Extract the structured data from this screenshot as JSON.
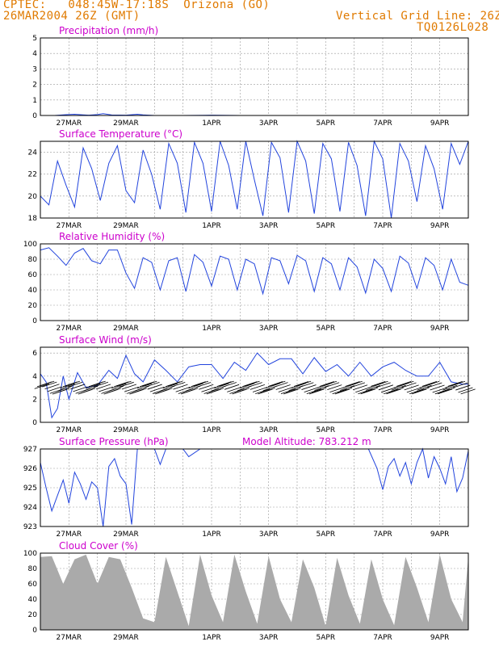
{
  "header": {
    "line1_left": "CPTEC:   048:45W-17:18S  Orizona (GO)",
    "line2_left": "26MAR2004 26Z (GMT)",
    "line1_right": "Vertical Grid Line: 26Z",
    "line2_right": "TQ0126L028"
  },
  "colors": {
    "header": "#e07a00",
    "title": "#cc00cc",
    "series": "#2244dd",
    "wind_barb": "#000000",
    "cloud": "#aaaaaa",
    "grid": "#999999"
  },
  "x_axis": {
    "labels": [
      "27MAR",
      "29MAR",
      "1APR",
      "3APR",
      "5APR",
      "7APR",
      "9APR"
    ],
    "day_range": [
      0,
      15
    ],
    "label_days": [
      1,
      3,
      6,
      8,
      10,
      12,
      14
    ]
  },
  "chart_data": [
    {
      "type": "line",
      "title": "Precipitation (mm/h)",
      "ylim": [
        0,
        5
      ],
      "yticks": [
        "0",
        "1",
        "2",
        "3",
        "4",
        "5"
      ],
      "x": [
        0,
        0.5,
        0.9,
        1.2,
        1.5,
        1.7,
        2.0,
        2.2,
        2.5,
        3.0,
        3.4,
        3.6,
        4.0,
        5.0,
        6.0,
        7.0,
        8.0,
        9.0,
        10.0,
        11.0,
        12.0,
        13.0,
        14.0,
        15.0
      ],
      "values": [
        0,
        0,
        0.05,
        0.08,
        0.04,
        0.02,
        0.06,
        0.12,
        0.03,
        0.02,
        0.08,
        0.04,
        0,
        0,
        0.02,
        0,
        0,
        0,
        0,
        0,
        0,
        0,
        0,
        0
      ]
    },
    {
      "type": "line",
      "title": "Surface Temperature (°C)",
      "ylim": [
        18,
        25
      ],
      "yticks": [
        "18",
        "20",
        "22",
        "24"
      ],
      "diurnal": {
        "peak_hour_frac": 0.72,
        "amp_start": 2.5,
        "amp_end": 3.5,
        "mean_start": 21.5,
        "mean_end": 21.6
      },
      "x": [
        0,
        0.3,
        0.6,
        0.9,
        1.2,
        1.5,
        1.8,
        2.1,
        2.4,
        2.7,
        3.0,
        3.3,
        3.6,
        3.9,
        4.2,
        4.5,
        4.8,
        5.1,
        5.4,
        5.7,
        6.0,
        6.3,
        6.6,
        6.9,
        7.2,
        7.5,
        7.8,
        8.1,
        8.4,
        8.7,
        9.0,
        9.3,
        9.6,
        9.9,
        10.2,
        10.5,
        10.8,
        11.1,
        11.4,
        11.7,
        12.0,
        12.3,
        12.6,
        12.9,
        13.2,
        13.5,
        13.8,
        14.1,
        14.4,
        14.7,
        15.0
      ],
      "values": [
        20.0,
        19.2,
        23.2,
        21.0,
        19.0,
        24.4,
        22.5,
        19.6,
        23.0,
        24.6,
        20.5,
        19.4,
        24.2,
        22.0,
        18.8,
        24.8,
        23.0,
        18.5,
        24.9,
        23.0,
        18.6,
        25.0,
        22.8,
        18.8,
        25.0,
        21.5,
        18.2,
        24.9,
        23.5,
        18.5,
        25.0,
        23.2,
        18.4,
        24.8,
        23.4,
        18.6,
        24.9,
        22.8,
        18.2,
        25.0,
        23.4,
        18.0,
        24.8,
        23.2,
        19.5,
        24.6,
        22.5,
        18.8,
        24.8,
        22.9,
        25.0
      ]
    },
    {
      "type": "line",
      "title": "Relative Humidity (%)",
      "ylim": [
        0,
        100
      ],
      "yticks": [
        "0",
        "20",
        "40",
        "60",
        "80",
        "100"
      ],
      "x": [
        0,
        0.3,
        0.6,
        0.9,
        1.2,
        1.5,
        1.8,
        2.1,
        2.4,
        2.7,
        3.0,
        3.3,
        3.6,
        3.9,
        4.2,
        4.5,
        4.8,
        5.1,
        5.4,
        5.7,
        6.0,
        6.3,
        6.6,
        6.9,
        7.2,
        7.5,
        7.8,
        8.1,
        8.4,
        8.7,
        9.0,
        9.3,
        9.6,
        9.9,
        10.2,
        10.5,
        10.8,
        11.1,
        11.4,
        11.7,
        12.0,
        12.3,
        12.6,
        12.9,
        13.2,
        13.5,
        13.8,
        14.1,
        14.4,
        14.7,
        15.0
      ],
      "values": [
        92,
        95,
        84,
        72,
        88,
        94,
        78,
        74,
        92,
        92,
        62,
        42,
        82,
        76,
        40,
        78,
        82,
        38,
        86,
        76,
        45,
        84,
        80,
        40,
        80,
        74,
        35,
        82,
        78,
        48,
        85,
        78,
        38,
        82,
        74,
        40,
        82,
        70,
        36,
        80,
        68,
        38,
        84,
        75,
        42,
        82,
        72,
        40,
        80,
        50,
        46
      ]
    },
    {
      "type": "line",
      "title": "Surface Wind (m/s)",
      "ylim": [
        0,
        6.5
      ],
      "yticks": [
        "0",
        "2",
        "4",
        "6"
      ],
      "x": [
        0,
        0.2,
        0.4,
        0.6,
        0.8,
        1.0,
        1.3,
        1.6,
        2.0,
        2.4,
        2.7,
        3.0,
        3.3,
        3.6,
        4.0,
        4.4,
        4.8,
        5.2,
        5.6,
        6.0,
        6.4,
        6.8,
        7.2,
        7.6,
        8.0,
        8.4,
        8.8,
        9.2,
        9.6,
        10.0,
        10.4,
        10.8,
        11.2,
        11.6,
        12.0,
        12.4,
        12.8,
        13.2,
        13.6,
        14.0,
        14.4,
        14.8,
        15.0
      ],
      "values": [
        4.2,
        3.5,
        0.4,
        1.2,
        4.0,
        2.0,
        4.3,
        3.0,
        3.2,
        4.5,
        3.8,
        5.8,
        4.2,
        3.5,
        5.4,
        4.5,
        3.5,
        4.8,
        5.0,
        5.0,
        3.8,
        5.2,
        4.5,
        6.0,
        5.0,
        5.5,
        5.5,
        4.2,
        5.6,
        4.4,
        5.0,
        4.0,
        5.2,
        4.0,
        4.8,
        5.2,
        4.5,
        4.0,
        4.0,
        5.2,
        3.5,
        3.3,
        3.3
      ],
      "barb_level": 3.0
    },
    {
      "type": "line",
      "title": "Surface Pressure (hPa)",
      "annotation": "Model Altitude: 783.212 m",
      "ylim": [
        923,
        927
      ],
      "yticks": [
        "923",
        "924",
        "925",
        "926",
        "927"
      ],
      "x": [
        0,
        0.2,
        0.4,
        0.6,
        0.8,
        1.0,
        1.2,
        1.4,
        1.6,
        1.8,
        2.0,
        2.2,
        2.4,
        2.6,
        2.8,
        3.0,
        3.2,
        3.4,
        3.6,
        3.8,
        4.0,
        4.2,
        4.4,
        4.6,
        4.8,
        5.0,
        5.2,
        5.6,
        6.0,
        7.0,
        8.0,
        9.0,
        10.0,
        11.0,
        11.5,
        11.8,
        12.0,
        12.2,
        12.4,
        12.6,
        12.8,
        13.0,
        13.2,
        13.4,
        13.6,
        13.8,
        14.0,
        14.2,
        14.4,
        14.6,
        14.8,
        15.0
      ],
      "values": [
        926.3,
        925.0,
        923.8,
        924.6,
        925.4,
        924.2,
        925.8,
        925.2,
        924.4,
        925.3,
        925.0,
        923.0,
        926.1,
        926.5,
        925.6,
        925.2,
        923.1,
        927.0,
        927.0,
        927.0,
        927.0,
        926.2,
        927.0,
        927.0,
        927.0,
        927.0,
        926.6,
        927.0,
        927.0,
        927.0,
        927.0,
        927.0,
        927.0,
        927.0,
        927.0,
        926.0,
        924.9,
        926.1,
        926.5,
        925.6,
        926.3,
        925.2,
        926.3,
        927.0,
        925.5,
        926.6,
        926.0,
        925.2,
        926.6,
        924.8,
        925.5,
        926.9
      ]
    },
    {
      "type": "area",
      "title": "Cloud Cover (%)",
      "ylim": [
        0,
        100
      ],
      "yticks": [
        "0",
        "20",
        "40",
        "60",
        "80",
        "100"
      ],
      "x": [
        0,
        0.4,
        0.8,
        1.2,
        1.6,
        2.0,
        2.4,
        2.8,
        3.2,
        3.6,
        4.0,
        4.4,
        4.8,
        5.2,
        5.6,
        6.0,
        6.4,
        6.8,
        7.2,
        7.6,
        8.0,
        8.4,
        8.8,
        9.2,
        9.6,
        10.0,
        10.4,
        10.8,
        11.2,
        11.6,
        12.0,
        12.4,
        12.8,
        13.2,
        13.6,
        14.0,
        14.4,
        14.8,
        15.0
      ],
      "values": [
        95,
        96,
        60,
        92,
        98,
        60,
        95,
        92,
        55,
        15,
        10,
        95,
        50,
        5,
        98,
        45,
        10,
        98,
        50,
        8,
        96,
        40,
        10,
        92,
        55,
        5,
        94,
        45,
        8,
        92,
        40,
        6,
        95,
        55,
        10,
        98,
        40,
        10,
        95
      ]
    }
  ]
}
